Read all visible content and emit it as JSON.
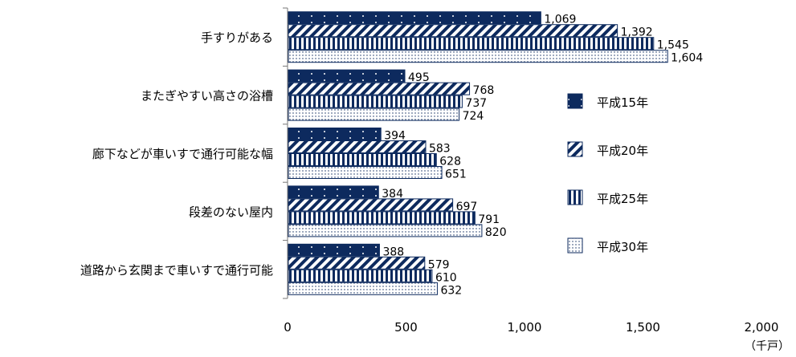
{
  "chart_data": {
    "type": "bar",
    "orientation": "horizontal",
    "categories": [
      "手すりがある",
      "またぎやすい高さの浴槽",
      "廊下などが車いすで通行可能な幅",
      "段差のない屋内",
      "道路から玄関まで車いすで通行可能"
    ],
    "series": [
      {
        "name": "平成15年",
        "values": [
          1069,
          495,
          394,
          384,
          388
        ],
        "display": [
          "1,069",
          "495",
          "394",
          "384",
          "388"
        ],
        "pattern": "dots-dark",
        "color": "#0d2a5e"
      },
      {
        "name": "平成20年",
        "values": [
          1392,
          768,
          583,
          697,
          579
        ],
        "display": [
          "1,392",
          "768",
          "583",
          "697",
          "579"
        ],
        "pattern": "diagonal",
        "color": "#0d2a5e"
      },
      {
        "name": "平成25年",
        "values": [
          1545,
          737,
          628,
          791,
          610
        ],
        "display": [
          "1,545",
          "737",
          "628",
          "791",
          "610"
        ],
        "pattern": "vertical",
        "color": "#0d2a5e"
      },
      {
        "name": "平成30年",
        "values": [
          1604,
          724,
          651,
          820,
          632
        ],
        "display": [
          "1,604",
          "724",
          "651",
          "820",
          "632"
        ],
        "pattern": "dots-light",
        "color": "#0d2a5e"
      }
    ],
    "xlim": [
      0,
      2000
    ],
    "xticks": [
      "0",
      "500",
      "1,000",
      "1,500",
      "2,000"
    ],
    "xtick_values": [
      0,
      500,
      1000,
      1500,
      2000
    ],
    "unit": "（千戸）",
    "legend_position": "right",
    "grid": false
  }
}
